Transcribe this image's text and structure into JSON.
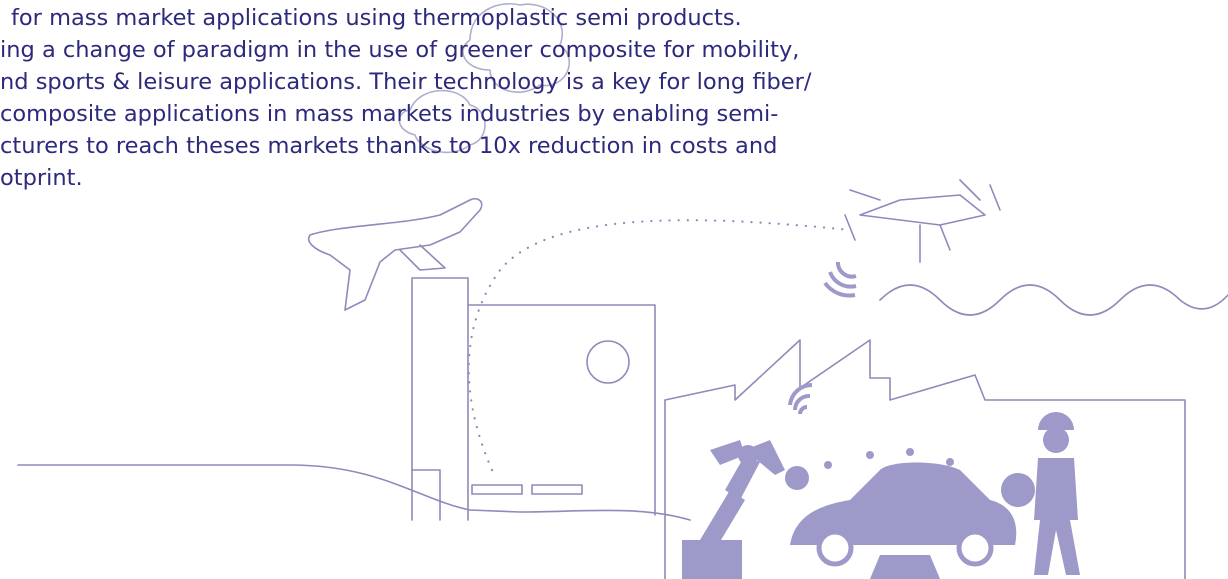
{
  "paragraph": {
    "lines": [
      "for mass market applications using thermoplastic semi products.",
      "ing a change of paradigm in the use of greener composite for mobility,",
      "nd sports & leisure applications. Their technology is a key for long fiber/",
      "composite applications in mass markets industries by enabling semi-",
      "cturers to reach theses markets thanks to 10x reduction in costs and",
      "otprint."
    ]
  }
}
